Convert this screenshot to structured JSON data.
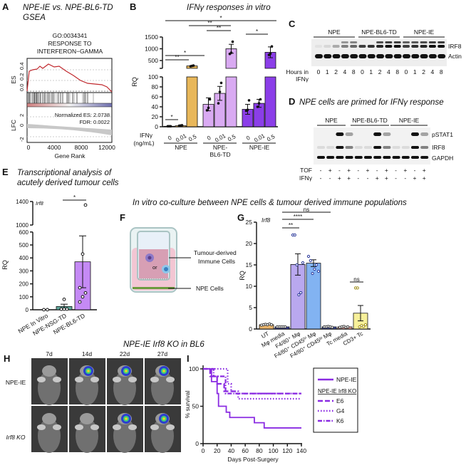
{
  "panels": {
    "A": {
      "letter": "A",
      "title1": "NPE-IE vs. NPE-BL6-TD",
      "title2": "GSEA",
      "go1": "GO:0034341",
      "go2": "RESPONSE TO",
      "go3": "INTERFERON−GAMMA",
      "es_label": "ES",
      "lfc_label": "LFC",
      "nes": "Normalized ES: 2.0738",
      "fdr": "FDR: 0.0022",
      "xlabel": "Gene Rank",
      "xticks": [
        "0",
        "4000",
        "8000",
        "12000"
      ],
      "es_ticks": [
        "0.0",
        "0.2",
        "0.4"
      ],
      "lfc_ticks": [
        "-2",
        "0",
        "2"
      ]
    },
    "B": {
      "letter": "B",
      "title": "IFNγ responses in vitro",
      "ifn": "IFNγ",
      "unit": "(ng/mL)"
    },
    "C": {
      "letter": "C",
      "groups": [
        "NPE",
        "NPE-BL6-TD",
        "NPE-IE"
      ],
      "bands": [
        "IRF8",
        "Actin"
      ],
      "hours_label1": "Hours in",
      "hours_label2": "IFNγ",
      "hours": [
        "0",
        "1",
        "2",
        "4",
        "8",
        "0",
        "1",
        "2",
        "4",
        "8",
        "0",
        "1",
        "2",
        "4",
        "8"
      ]
    },
    "D": {
      "letter": "D",
      "title": "NPE cells are primed for IFNγ response",
      "groups": [
        "NPE",
        "NPE-BL6-TD",
        "NPE-IE"
      ],
      "bands": [
        "pSTAT1",
        "IRF8",
        "GAPDH"
      ],
      "tof_label": "TOF",
      "ifn_label": "IFNγ",
      "tof": [
        "-",
        "+",
        "-",
        "+",
        "-",
        "+",
        "-",
        "+",
        "-",
        "+",
        "-",
        "+"
      ],
      "ifn": [
        "-",
        "-",
        "+",
        "+",
        "-",
        "-",
        "+",
        "+",
        "-",
        "-",
        "+",
        "+"
      ]
    },
    "E": {
      "letter": "E",
      "title1": "Transcriptional analysis of",
      "title2": "acutely derived tumour cells",
      "gene": "Irf8"
    },
    "FG_title": "In vitro co-culture between NPE cells & tumour derived immune populations",
    "F": {
      "letter": "F",
      "label1a": "Tumour-derived",
      "label1b": "Immune Cells",
      "or": "or",
      "label2": "NPE Cells"
    },
    "G": {
      "letter": "G",
      "gene": "Irf8"
    },
    "H": {
      "letter": "H",
      "title": "NPE-IE Irf8 KO in BL6",
      "days": [
        "7d",
        "14d",
        "22d",
        "27d"
      ],
      "rows": [
        "NPE-IE",
        "Irf8 KO"
      ]
    },
    "I": {
      "letter": "I",
      "legend_sub": "NPE-IE Irf8 KO"
    }
  },
  "chart_data": [
    {
      "id": "B",
      "type": "bar",
      "ylabel": "RQ",
      "yticks_lower": [
        "0",
        "20",
        "40",
        "60",
        "80",
        "100"
      ],
      "yticks_upper": [
        "500",
        "1000",
        "1500"
      ],
      "ylim_lower": [
        0,
        100
      ],
      "ylim_upper": [
        0,
        1500
      ],
      "groups": [
        {
          "name": "NPE",
          "color": "#e8b75a",
          "categories": [
            "0",
            "0.01",
            "0.5"
          ],
          "values": [
            1,
            2,
            270
          ],
          "points": [
            [
              1,
              1,
              1
            ],
            [
              2,
              2.5,
              3
            ],
            [
              255,
              270,
              285
            ]
          ]
        },
        {
          "name": "NPE-BL6-TD",
          "color": "#d9aaf2",
          "categories": [
            "0",
            "0.01",
            "0.5"
          ],
          "values": [
            45,
            67,
            1000
          ],
          "err": [
            13,
            14,
            190
          ],
          "points": [
            [
              33,
              38,
              55
            ],
            [
              47,
              70,
              88
            ],
            [
              780,
              830,
              1300
            ]
          ]
        },
        {
          "name": "NPE-IE",
          "color": "#8b3ee8",
          "categories": [
            "0",
            "0.01",
            "0.5"
          ],
          "values": [
            35,
            47,
            850
          ],
          "err": [
            10,
            8,
            230
          ],
          "points": [
            [
              32,
              34,
              53
            ],
            [
              40,
              47,
              55
            ],
            [
              740,
              790,
              1100
            ]
          ]
        }
      ],
      "significance": [
        "*",
        "**",
        "**",
        "*",
        "*",
        "**",
        "*"
      ]
    },
    {
      "id": "E",
      "type": "bar",
      "ylabel": "RQ",
      "yticks_lower": [
        "0",
        "100",
        "200",
        "300",
        "400",
        "500",
        "600"
      ],
      "yticks_upper": [
        "1000",
        "1400"
      ],
      "categories": [
        "NPE In Vitro",
        "NPE-NSG-TD",
        "NPE-BL6-TD"
      ],
      "values": [
        0.5,
        25,
        370
      ],
      "err": [
        0,
        18,
        200
      ],
      "colors": [
        "#ffffff",
        "#5fa89b",
        "#c58af5"
      ],
      "points": [
        [
          0.5,
          0.5
        ],
        [
          5,
          5,
          5,
          5,
          80
        ],
        [
          60,
          100,
          130,
          170,
          430,
          1340
        ]
      ],
      "significance": [
        "*"
      ]
    },
    {
      "id": "G",
      "type": "bar",
      "ylabel": "RQ",
      "yticks": [
        "0",
        "5",
        "10",
        "15",
        "20",
        "25"
      ],
      "ylim": [
        0,
        25
      ],
      "categories": [
        "UT",
        "Mφ media",
        "F4/80⁺ Mφ",
        "F4/80⁺ CD45ʰⁱ Mφ",
        "F4/80⁺ CD45ˡᵒ Mφ",
        "Tc media",
        "CD3+ Tc"
      ],
      "values": [
        1,
        0.5,
        15.1,
        15.4,
        0.5,
        0.5,
        3.7
      ],
      "err": [
        0.1,
        0.05,
        2.5,
        0.8,
        0.1,
        0.1,
        1.8
      ],
      "colors": [
        "#e8b36a",
        "#3a3f9a",
        "#b9a8ef",
        "#82b3f2",
        "#3d4b9a",
        "#e29b93",
        "#f7f09a"
      ],
      "points": [
        [
          0.9,
          1,
          1.1,
          1,
          1.2,
          1
        ],
        [
          0.5,
          0.5,
          0.5,
          0.5,
          0.5
        ],
        [
          22,
          22,
          15,
          8,
          8.5,
          15.5
        ],
        [
          17,
          16,
          13,
          14,
          15,
          13.5
        ],
        [
          0.5,
          0.5,
          0.6,
          0.5,
          0.4
        ],
        [
          0.4,
          0.5,
          0.6,
          0.4,
          0.5
        ],
        [
          9.6,
          9.6,
          0.5,
          0.8,
          0.6,
          1
        ]
      ],
      "significance": [
        "**",
        "****",
        "ns",
        "ns"
      ]
    },
    {
      "id": "I",
      "type": "line",
      "xlabel": "Days Post-Surgery",
      "ylabel": "% survival",
      "xticks": [
        "0",
        "20",
        "40",
        "60",
        "80",
        "100",
        "120",
        "140"
      ],
      "yticks": [
        "0",
        "50",
        "100"
      ],
      "xlim": [
        0,
        140
      ],
      "ylim": [
        0,
        100
      ],
      "legend": "right",
      "series": [
        {
          "name": "NPE-IE",
          "dash": "solid",
          "steps": [
            [
              0,
              100
            ],
            [
              12,
              100
            ],
            [
              12,
              83
            ],
            [
              20,
              83
            ],
            [
              20,
              67
            ],
            [
              22,
              67
            ],
            [
              22,
              50
            ],
            [
              33,
              50
            ],
            [
              33,
              42
            ],
            [
              38,
              42
            ],
            [
              38,
              35
            ],
            [
              73,
              35
            ],
            [
              73,
              28
            ],
            [
              87,
              28
            ],
            [
              87,
              21
            ],
            [
              140,
              21
            ]
          ]
        },
        {
          "name": "E6",
          "dash": "dashed",
          "steps": [
            [
              0,
              100
            ],
            [
              10,
              100
            ],
            [
              10,
              90
            ],
            [
              20,
              90
            ],
            [
              20,
              80
            ],
            [
              30,
              80
            ],
            [
              30,
              70
            ],
            [
              45,
              70
            ],
            [
              45,
              67
            ],
            [
              140,
              67
            ]
          ]
        },
        {
          "name": "G4",
          "dash": "dotted",
          "steps": [
            [
              0,
              100
            ],
            [
              35,
              100
            ],
            [
              35,
              80
            ],
            [
              40,
              80
            ],
            [
              40,
              70
            ],
            [
              50,
              70
            ],
            [
              50,
              60
            ],
            [
              140,
              60
            ]
          ]
        },
        {
          "name": "K6",
          "dash": "dashdot",
          "steps": [
            [
              0,
              100
            ],
            [
              15,
              100
            ],
            [
              15,
              90
            ],
            [
              32,
              90
            ],
            [
              32,
              67
            ],
            [
              140,
              67
            ]
          ]
        }
      ]
    }
  ]
}
